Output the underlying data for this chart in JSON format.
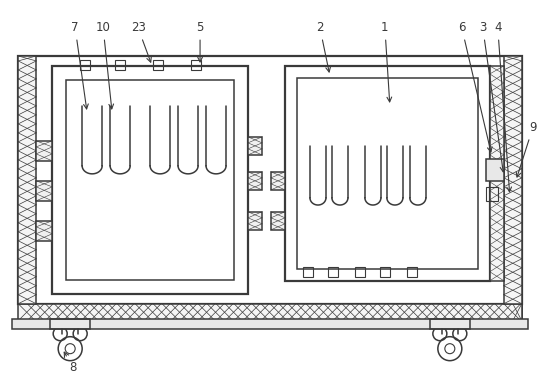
{
  "bg_color": "#ffffff",
  "line_color": "#3a3a3a",
  "fig_width": 5.4,
  "fig_height": 3.76,
  "dpi": 100
}
